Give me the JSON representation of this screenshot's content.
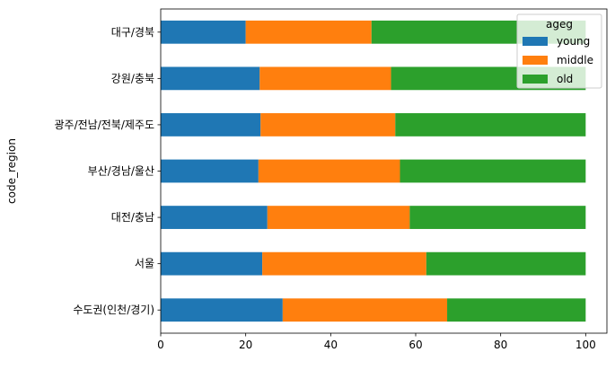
{
  "chart_data": {
    "type": "bar",
    "orientation": "horizontal",
    "stacked": true,
    "ylabel": "code_region",
    "xlabel": "",
    "xlim": [
      0,
      105
    ],
    "xticks": [
      0,
      20,
      40,
      60,
      80,
      100
    ],
    "categories": [
      "수도권(인천/경기)",
      "서울",
      "대전/충남",
      "부산/경남/울산",
      "광주/전남/전북/제주도",
      "강원/충북",
      "대구/경북"
    ],
    "legend": {
      "title": "ageg",
      "placement": "top-right"
    },
    "series": [
      {
        "name": "young",
        "color": "#1f77b4",
        "values": [
          28.7,
          23.9,
          25.1,
          23.0,
          23.5,
          23.3,
          20.0
        ]
      },
      {
        "name": "middle",
        "color": "#ff7f0e",
        "values": [
          38.7,
          38.6,
          33.5,
          33.3,
          31.7,
          30.9,
          29.6
        ]
      },
      {
        "name": "old",
        "color": "#2ca02c",
        "values": [
          32.6,
          37.5,
          41.4,
          43.7,
          44.8,
          45.8,
          50.4
        ]
      }
    ],
    "grid": false
  }
}
